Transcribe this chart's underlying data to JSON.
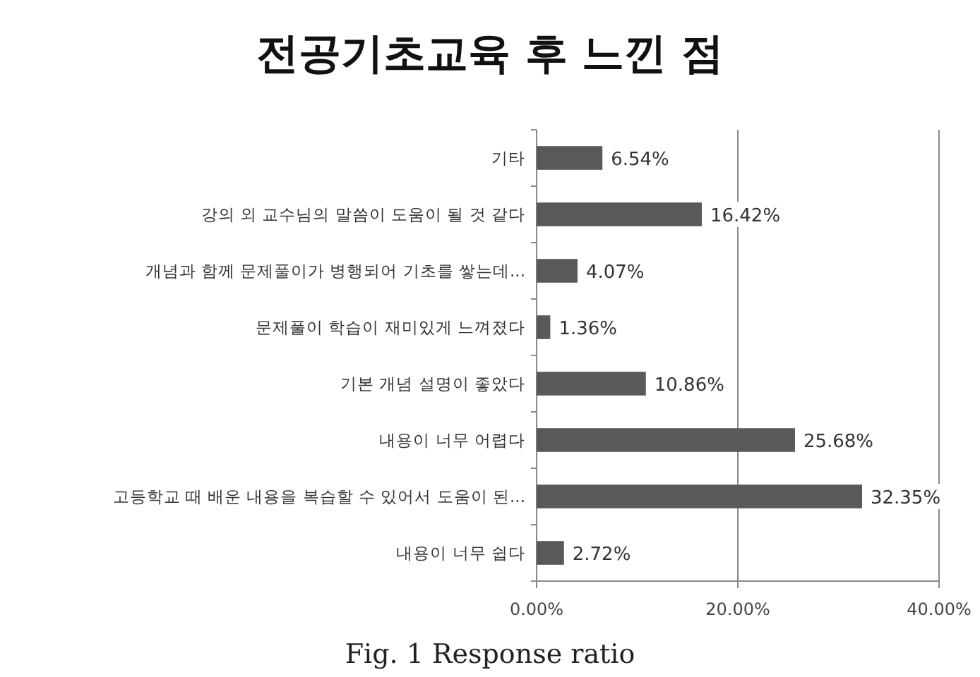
{
  "chart_data": {
    "type": "bar",
    "orientation": "horizontal",
    "title": "전공기초교육 후 느낀 점",
    "categories": [
      "기타",
      "강의 외 교수님의 말씀이 도움이 될 것 같다",
      "개념과 함께 문제풀이가 병행되어 기초를 쌓는데...",
      "문제풀이 학습이 재미있게 느껴졌다",
      "기본 개념 설명이 좋았다",
      "내용이 너무 어렵다",
      "고등학교 때 배운 내용을 복습할 수 있어서 도움이 된...",
      "내용이 너무 쉽다"
    ],
    "values": [
      6.54,
      16.42,
      4.07,
      1.36,
      10.86,
      25.68,
      32.35,
      2.72
    ],
    "color": "#595959",
    "value_labels": [
      "6.54%",
      "16.42%",
      "4.07%",
      "1.36%",
      "10.86%",
      "25.68%",
      "32.35%",
      "2.72%"
    ],
    "xlim": [
      0,
      40
    ],
    "xticks": [
      {
        "value": 0,
        "label": "0.00%"
      },
      {
        "value": 20,
        "label": "20.00%"
      },
      {
        "value": 40,
        "label": "40.00%"
      }
    ],
    "grid": "x",
    "annotations": [
      "Fig. 1 Response ratio"
    ]
  }
}
